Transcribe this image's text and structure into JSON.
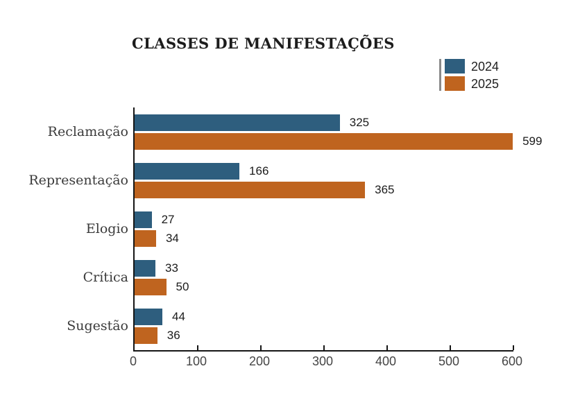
{
  "title": "CLASSES DE MANIFESTAÇÕES",
  "colors": {
    "series_2024": "#2E5E7E",
    "series_2025": "#BF641F",
    "axis": "#151515",
    "legend_divider": "#8a8a8a"
  },
  "legend": {
    "position": "top-right",
    "items": [
      {
        "label": "2024",
        "color": "#2E5E7E"
      },
      {
        "label": "2025",
        "color": "#BF641F"
      }
    ]
  },
  "chart_data": {
    "type": "bar",
    "orientation": "horizontal",
    "title": "CLASSES DE MANIFESTAÇÕES",
    "categories": [
      "Reclamação",
      "Representação",
      "Elogio",
      "Crítica",
      "Sugestão"
    ],
    "series": [
      {
        "name": "2024",
        "color": "#2E5E7E",
        "values": [
          325,
          166,
          27,
          33,
          44
        ]
      },
      {
        "name": "2025",
        "color": "#BF641F",
        "values": [
          599,
          365,
          34,
          50,
          36
        ]
      }
    ],
    "xlabel": "",
    "ylabel": "",
    "xlim": [
      0,
      600
    ],
    "x_ticks": [
      0,
      100,
      200,
      300,
      400,
      500,
      600
    ],
    "grid": false,
    "value_labels": "outside-end"
  }
}
